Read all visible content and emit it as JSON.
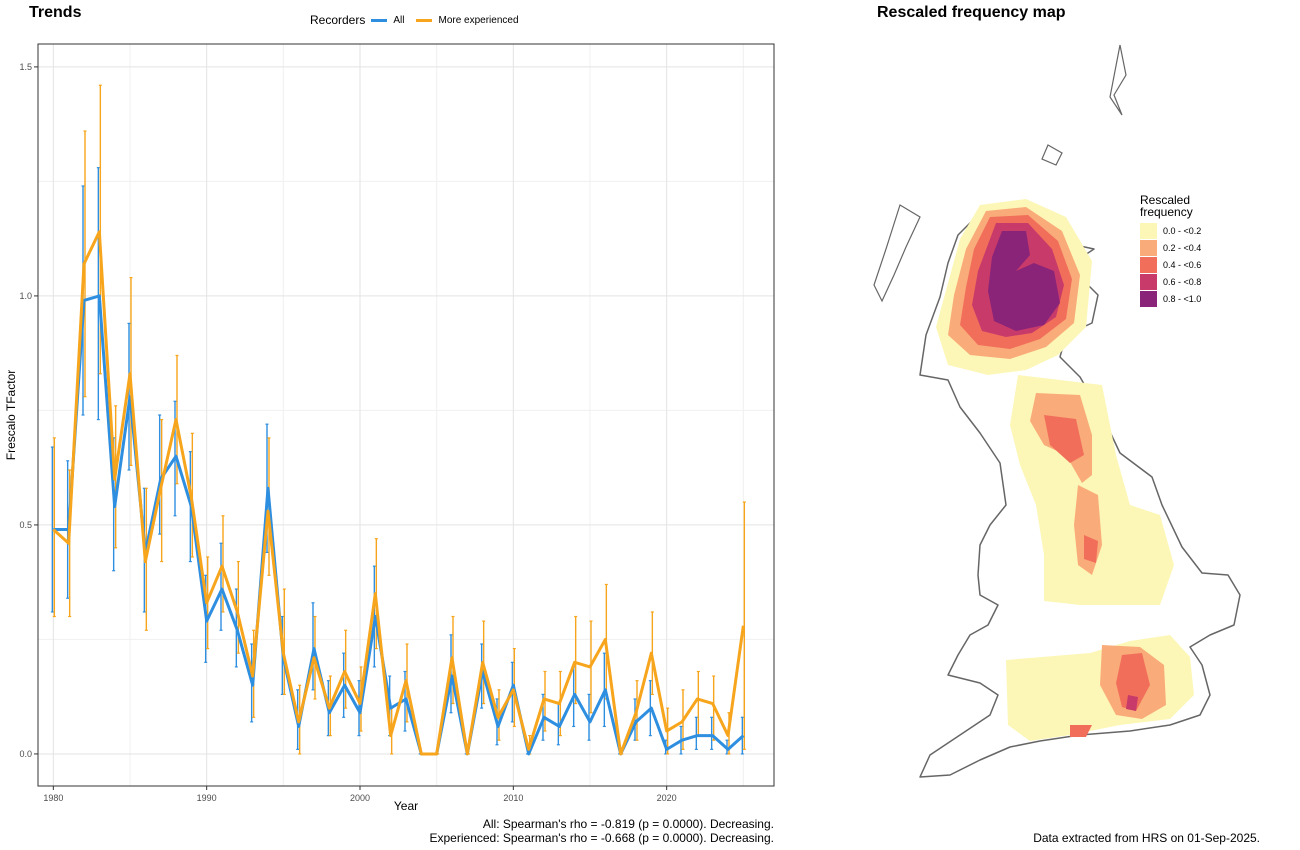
{
  "trends": {
    "title": "Trends",
    "legend": {
      "title": "Recorders",
      "items": [
        {
          "label": "All",
          "color": "#2e8ee0"
        },
        {
          "label": "More experienced",
          "color": "#f7a51c"
        }
      ]
    },
    "caption_all": "All: Spearman's rho = -0.819 (p = 0.0000). Decreasing.",
    "caption_exp": "Experienced: Spearman's rho = -0.668 (p = 0.0000). Decreasing."
  },
  "map": {
    "title": "Rescaled frequency map",
    "legend_title_1": "Rescaled",
    "legend_title_2": "frequency",
    "legend_items": [
      {
        "label": "0.0 - <0.2",
        "color": "#fcf7b7"
      },
      {
        "label": "0.2 - <0.4",
        "color": "#f9ac7a"
      },
      {
        "label": "0.4 - <0.6",
        "color": "#f16f5a"
      },
      {
        "label": "0.6 - <0.8",
        "color": "#c83a6a"
      },
      {
        "label": "0.8 - <1.0",
        "color": "#8a2478"
      }
    ],
    "source_note": "Data extracted from HRS on 01-Sep-2025."
  },
  "chart_data": {
    "type": "line",
    "xlabel": "Year",
    "ylabel": "Frescalo TFactor",
    "xlim": [
      1979,
      2027
    ],
    "ylim": [
      -0.07,
      1.55
    ],
    "xticks": [
      "1980",
      "1990",
      "2000",
      "2010",
      "2020"
    ],
    "yticks": [
      "0.0",
      "0.5",
      "1.0",
      "1.5"
    ],
    "grid": true,
    "legend_position": "top",
    "x": [
      1980,
      1981,
      1982,
      1983,
      1984,
      1985,
      1986,
      1987,
      1988,
      1989,
      1990,
      1991,
      1992,
      1993,
      1994,
      1995,
      1996,
      1997,
      1998,
      1999,
      2000,
      2001,
      2002,
      2003,
      2004,
      2005,
      2006,
      2007,
      2008,
      2009,
      2010,
      2011,
      2012,
      2013,
      2014,
      2015,
      2016,
      2017,
      2018,
      2019,
      2020,
      2021,
      2022,
      2023,
      2024,
      2025
    ],
    "series": [
      {
        "name": "All",
        "values": [
          0.49,
          0.49,
          0.99,
          1.0,
          0.54,
          0.78,
          0.44,
          0.6,
          0.65,
          0.54,
          0.29,
          0.36,
          0.27,
          0.15,
          0.58,
          0.21,
          0.06,
          0.23,
          0.09,
          0.15,
          0.09,
          0.3,
          0.1,
          0.12,
          0.0,
          0.0,
          0.17,
          0.0,
          0.18,
          0.06,
          0.15,
          0.0,
          0.08,
          0.06,
          0.13,
          0.07,
          0.14,
          0.0,
          0.07,
          0.1,
          0.01,
          0.03,
          0.04,
          0.04,
          0.01,
          0.04
        ],
        "lower": [
          0.31,
          0.34,
          0.74,
          0.73,
          0.4,
          0.62,
          0.31,
          0.48,
          0.52,
          0.42,
          0.2,
          0.27,
          0.19,
          0.07,
          0.44,
          0.13,
          0.01,
          0.14,
          0.04,
          0.08,
          0.04,
          0.19,
          0.04,
          0.05,
          0.0,
          0.0,
          0.09,
          0.0,
          0.1,
          0.02,
          0.07,
          0.0,
          0.03,
          0.02,
          0.06,
          0.03,
          0.06,
          0.0,
          0.03,
          0.04,
          0.0,
          0.0,
          0.01,
          0.01,
          0.0,
          0.0
        ],
        "upper": [
          0.67,
          0.64,
          1.24,
          1.28,
          0.69,
          0.94,
          0.58,
          0.74,
          0.77,
          0.66,
          0.39,
          0.46,
          0.36,
          0.24,
          0.72,
          0.3,
          0.14,
          0.33,
          0.16,
          0.22,
          0.16,
          0.41,
          0.17,
          0.18,
          0.0,
          0.0,
          0.26,
          0.0,
          0.24,
          0.12,
          0.2,
          0.0,
          0.13,
          0.11,
          0.19,
          0.13,
          0.22,
          0.0,
          0.12,
          0.16,
          0.03,
          0.06,
          0.08,
          0.08,
          0.03,
          0.08
        ]
      },
      {
        "name": "More experienced",
        "values": [
          0.49,
          0.46,
          1.07,
          1.14,
          0.6,
          0.83,
          0.42,
          0.58,
          0.73,
          0.56,
          0.33,
          0.41,
          0.31,
          0.17,
          0.53,
          0.22,
          0.07,
          0.21,
          0.1,
          0.18,
          0.11,
          0.35,
          0.04,
          0.16,
          0.0,
          0.0,
          0.21,
          0.0,
          0.2,
          0.08,
          0.14,
          0.01,
          0.12,
          0.11,
          0.2,
          0.19,
          0.25,
          0.0,
          0.09,
          0.22,
          0.05,
          0.07,
          0.12,
          0.11,
          0.04,
          0.28
        ],
        "lower": [
          0.3,
          0.3,
          0.78,
          0.83,
          0.45,
          0.63,
          0.27,
          0.42,
          0.59,
          0.43,
          0.23,
          0.31,
          0.22,
          0.08,
          0.39,
          0.13,
          0.0,
          0.12,
          0.04,
          0.1,
          0.05,
          0.23,
          0.0,
          0.07,
          0.0,
          0.0,
          0.11,
          0.0,
          0.11,
          0.03,
          0.06,
          0.0,
          0.05,
          0.04,
          0.11,
          0.09,
          0.12,
          0.0,
          0.03,
          0.13,
          0.0,
          0.01,
          0.04,
          0.03,
          0.0,
          0.01
        ],
        "upper": [
          0.69,
          0.62,
          1.36,
          1.46,
          0.76,
          1.04,
          0.58,
          0.73,
          0.87,
          0.7,
          0.43,
          0.52,
          0.42,
          0.27,
          0.69,
          0.36,
          0.15,
          0.3,
          0.17,
          0.27,
          0.19,
          0.47,
          0.1,
          0.24,
          0.0,
          0.0,
          0.3,
          0.0,
          0.29,
          0.14,
          0.23,
          0.04,
          0.18,
          0.18,
          0.3,
          0.29,
          0.37,
          0.0,
          0.16,
          0.31,
          0.1,
          0.14,
          0.18,
          0.17,
          0.09,
          0.55
        ]
      }
    ]
  }
}
